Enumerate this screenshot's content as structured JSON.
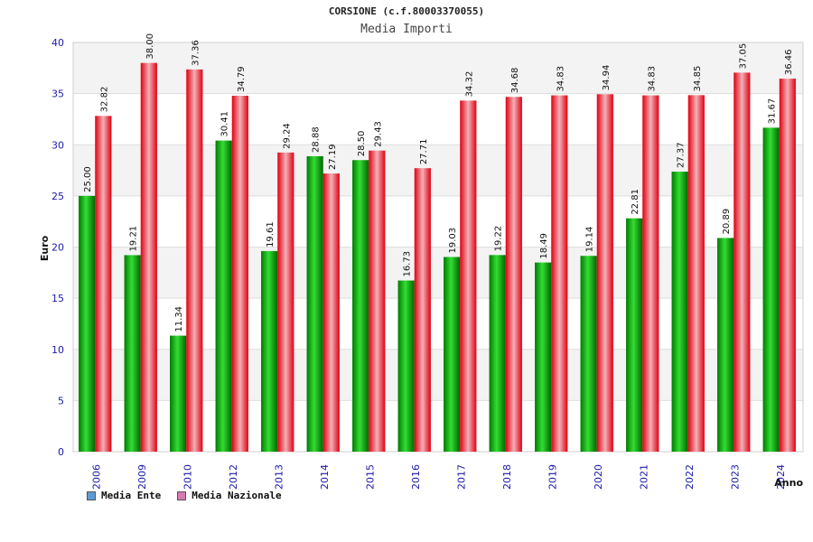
{
  "chart_data": {
    "type": "bar",
    "title": "CORSIONE (c.f.80003370055)",
    "subtitle": "Media Importi",
    "xlabel": "Anno",
    "ylabel": "Euro",
    "ylim": [
      0,
      40
    ],
    "yticks": [
      "0",
      "5",
      "10",
      "15",
      "20",
      "25",
      "30",
      "35",
      "40"
    ],
    "grid": true,
    "legend_position": "bottom-left",
    "categories": [
      "2006",
      "2009",
      "2010",
      "2012",
      "2013",
      "2014",
      "2015",
      "2016",
      "2017",
      "2018",
      "2019",
      "2020",
      "2021",
      "2022",
      "2023",
      "2024"
    ],
    "series": [
      {
        "name": "Media Ente",
        "color": "#00aa00",
        "legend_color": "#5b9bd5",
        "values": [
          25.0,
          19.21,
          11.34,
          30.41,
          19.61,
          28.88,
          28.5,
          16.73,
          19.03,
          19.22,
          18.49,
          19.14,
          22.81,
          27.37,
          20.89,
          31.67
        ],
        "labels": [
          "25.00",
          "19.21",
          "11.34",
          "30.41",
          "19.61",
          "28.88",
          "28.50",
          "16.73",
          "19.03",
          "19.22",
          "18.49",
          "19.14",
          "22.81",
          "27.37",
          "20.89",
          "31.67"
        ]
      },
      {
        "name": "Media Nazionale",
        "color": "#e8101a",
        "legend_color": "#d67ab0",
        "values": [
          32.82,
          38.0,
          37.36,
          34.79,
          29.24,
          27.19,
          29.43,
          27.71,
          34.32,
          34.68,
          34.83,
          34.94,
          34.83,
          34.85,
          37.05,
          36.46
        ],
        "labels": [
          "32.82",
          "38.00",
          "37.36",
          "34.79",
          "29.24",
          "27.19",
          "29.43",
          "27.71",
          "34.32",
          "34.68",
          "34.83",
          "34.94",
          "34.83",
          "34.85",
          "37.05",
          "36.46"
        ]
      }
    ]
  }
}
